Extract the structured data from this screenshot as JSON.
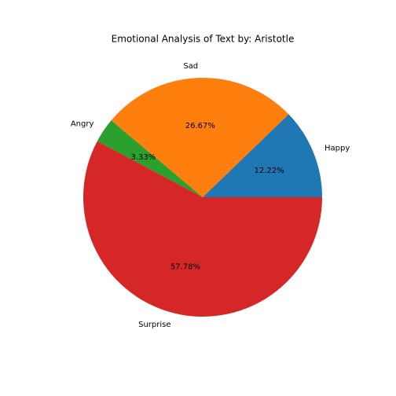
{
  "chart_data": {
    "type": "pie",
    "title": "Emotional Analysis of Text by: Aristotle",
    "categories": [
      "Happy",
      "Sad",
      "Angry",
      "Surprise"
    ],
    "values": [
      12.22,
      26.67,
      3.33,
      57.78
    ],
    "value_labels": [
      "12.22%",
      "26.67%",
      "3.33%",
      "57.78%"
    ],
    "colors": [
      "#1f77b4",
      "#ff7f0e",
      "#2ca02c",
      "#d62728"
    ],
    "start_angle_deg": 0,
    "direction": "counterclockwise",
    "legend": "none"
  }
}
